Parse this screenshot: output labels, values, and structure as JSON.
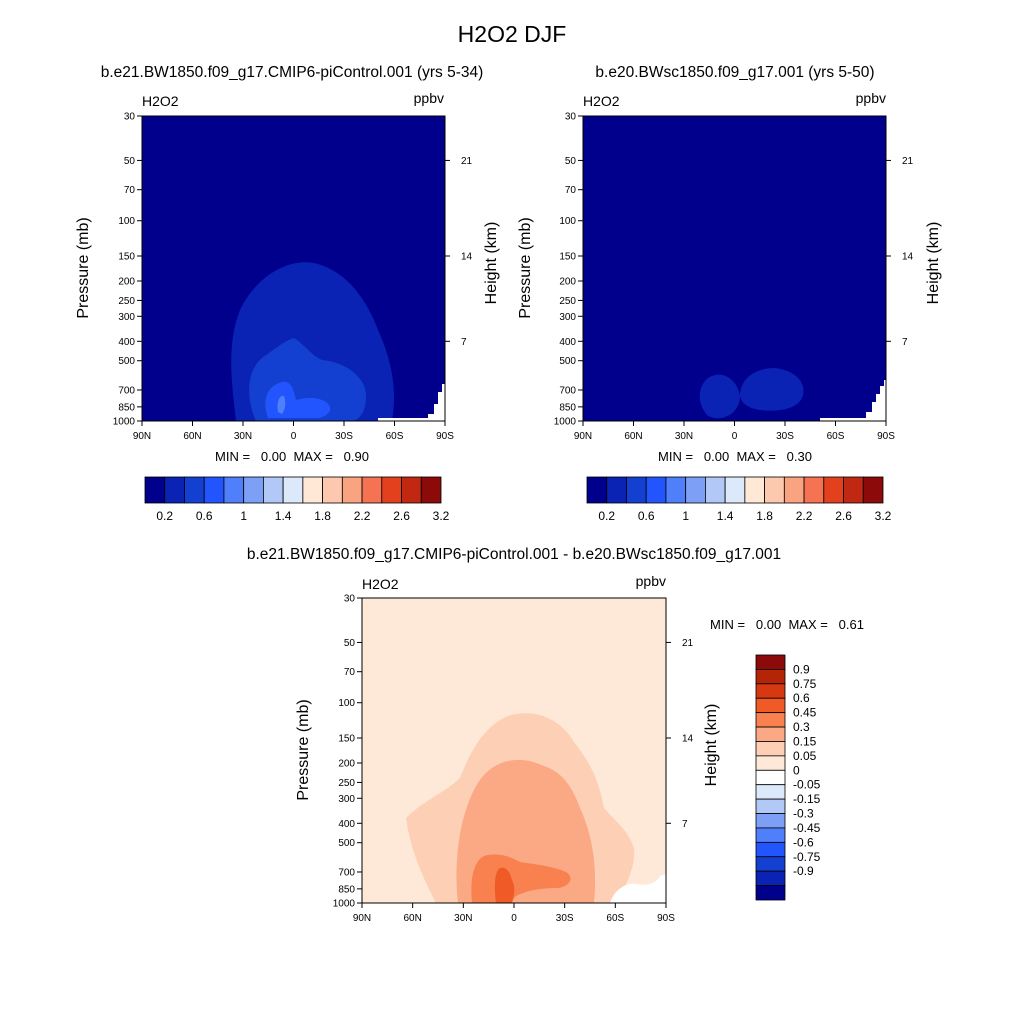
{
  "title": "H2O2 DJF",
  "panels": [
    {
      "id": "a",
      "title": "b.e21.BW1850.f09_g17.CMIP6-piControl.001 (yrs 5-34)",
      "var_label": "H2O2",
      "units": "ppbv",
      "ylabel": "Pressure (mb)",
      "ylabel_right": "Height (km)",
      "stats": "MIN =   0.00  MAX =   0.90"
    },
    {
      "id": "b",
      "title": "b.e20.BWsc1850.f09_g17.001 (yrs 5-50)",
      "var_label": "H2O2",
      "units": "ppbv",
      "ylabel": "Pressure (mb)",
      "ylabel_right": "Height (km)",
      "stats": "MIN =   0.00  MAX =   0.30"
    },
    {
      "id": "c",
      "title": "b.e21.BW1850.f09_g17.CMIP6-piControl.001 - b.e20.BWsc1850.f09_g17.001",
      "var_label": "H2O2",
      "units": "ppbv",
      "ylabel": "Pressure (mb)",
      "ylabel_right": "Height (km)",
      "stats": "MIN =   0.00  MAX =   0.61"
    }
  ],
  "chart_data": [
    {
      "type": "heatmap",
      "title": "b.e21.BW1850.f09_g17.CMIP6-piControl.001 (yrs 5-34)",
      "xlabel": "",
      "ylabel": "Pressure (mb)",
      "x_ticks": [
        "90N",
        "60N",
        "30N",
        "0",
        "30S",
        "60S",
        "90S"
      ],
      "y_ticks": [
        30,
        50,
        70,
        100,
        150,
        200,
        250,
        300,
        400,
        500,
        700,
        850,
        1000
      ],
      "y_scale": "log",
      "y_right_label": "Height (km)",
      "y_right_ticks": [
        21,
        14,
        7
      ],
      "min": 0.0,
      "max": 0.9,
      "colorbar_labels": [
        "0.2",
        "0.6",
        "1",
        "1.4",
        "1.8",
        "2.2",
        "2.6",
        "3.2"
      ]
    },
    {
      "type": "heatmap",
      "title": "b.e20.BWsc1850.f09_g17.001 (yrs 5-50)",
      "xlabel": "",
      "ylabel": "Pressure (mb)",
      "x_ticks": [
        "90N",
        "60N",
        "30N",
        "0",
        "30S",
        "60S",
        "90S"
      ],
      "y_ticks": [
        30,
        50,
        70,
        100,
        150,
        200,
        250,
        300,
        400,
        500,
        700,
        850,
        1000
      ],
      "y_scale": "log",
      "y_right_label": "Height (km)",
      "y_right_ticks": [
        21,
        14,
        7
      ],
      "min": 0.0,
      "max": 0.3,
      "colorbar_labels": [
        "0.2",
        "0.6",
        "1",
        "1.4",
        "1.8",
        "2.2",
        "2.6",
        "3.2"
      ]
    },
    {
      "type": "heatmap",
      "title": "b.e21.BW1850.f09_g17.CMIP6-piControl.001 - b.e20.BWsc1850.f09_g17.001",
      "xlabel": "",
      "ylabel": "Pressure (mb)",
      "x_ticks": [
        "90N",
        "60N",
        "30N",
        "0",
        "30S",
        "60S",
        "90S"
      ],
      "y_ticks": [
        30,
        50,
        70,
        100,
        150,
        200,
        250,
        300,
        400,
        500,
        700,
        850,
        1000
      ],
      "y_scale": "log",
      "y_right_label": "Height (km)",
      "y_right_ticks": [
        21,
        14,
        7
      ],
      "min": 0.0,
      "max": 0.61,
      "colorbar_labels": [
        "0.9",
        "0.75",
        "0.6",
        "0.45",
        "0.3",
        "0.15",
        "0.05",
        "0",
        "-0.05",
        "-0.15",
        "-0.3",
        "-0.45",
        "-0.6",
        "-0.75",
        "-0.9"
      ]
    }
  ],
  "colors": {
    "abs_scale": [
      "#00008c",
      "#0a23b4",
      "#1440d2",
      "#2355ff",
      "#4f7ffa",
      "#7d9ff5",
      "#b2c8f7",
      "#dce9fa",
      "#ffe8d6",
      "#fcc9ae",
      "#f9a380",
      "#f57352",
      "#e3411e",
      "#c02812",
      "#8c0a0a"
    ],
    "diff_scale": [
      "#00008c",
      "#0a23b4",
      "#1440d2",
      "#2355ff",
      "#4f7ffa",
      "#7d9ff5",
      "#b2c8f7",
      "#dce9fa",
      "#ffffff",
      "#fee8d8",
      "#fdcfb5",
      "#fba985",
      "#f9814f",
      "#f05a26",
      "#d63911",
      "#b42508",
      "#8c0a0a"
    ]
  }
}
